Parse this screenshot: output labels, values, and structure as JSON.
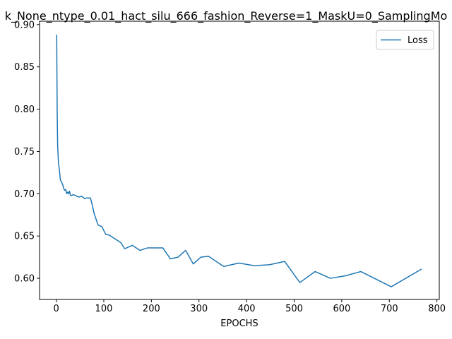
{
  "chart_data": {
    "type": "line",
    "title": "k_None_ntype_0.01_hact_silu_666_fashion_Reverse=1_MaskU=0_SamplingMo",
    "xlabel": "EPOCHS",
    "ylabel": "",
    "xlim": [
      -35,
      805
    ],
    "ylim": [
      0.575,
      0.904
    ],
    "xticks": [
      0,
      100,
      200,
      300,
      400,
      500,
      600,
      700,
      800
    ],
    "yticks": [
      0.6,
      0.65,
      0.7,
      0.75,
      0.8,
      0.85,
      0.9
    ],
    "xtick_labels": [
      "0",
      "100",
      "200",
      "300",
      "400",
      "500",
      "600",
      "700",
      "800"
    ],
    "ytick_labels": [
      "0.60",
      "0.65",
      "0.70",
      "0.75",
      "0.80",
      "0.85",
      "0.90"
    ],
    "grid": false,
    "legend": "upper right",
    "series": [
      {
        "name": "Loss",
        "color": "#1f77b4",
        "x": [
          1,
          2,
          3,
          4,
          5,
          6,
          7,
          8,
          9,
          10,
          12,
          14,
          16,
          18,
          20,
          22,
          24,
          26,
          28,
          30,
          33,
          36,
          40,
          44,
          48,
          52,
          56,
          60,
          64,
          68,
          72,
          76,
          80,
          88,
          96,
          104,
          112,
          120,
          128,
          136,
          144,
          160,
          176,
          192,
          208,
          224,
          240,
          256,
          272,
          288,
          304,
          320,
          352,
          384,
          416,
          448,
          480,
          512,
          544,
          576,
          608,
          640,
          704,
          768
        ],
        "y": [
          0.888,
          0.8,
          0.757,
          0.745,
          0.735,
          0.731,
          0.727,
          0.72,
          0.716,
          0.715,
          0.713,
          0.71,
          0.706,
          0.704,
          0.705,
          0.7,
          0.702,
          0.7,
          0.703,
          0.698,
          0.698,
          0.699,
          0.698,
          0.697,
          0.696,
          0.697,
          0.696,
          0.694,
          0.695,
          0.695,
          0.695,
          0.686,
          0.676,
          0.663,
          0.661,
          0.652,
          0.651,
          0.648,
          0.645,
          0.642,
          0.635,
          0.639,
          0.633,
          0.636,
          0.636,
          0.636,
          0.623,
          0.625,
          0.633,
          0.617,
          0.625,
          0.626,
          0.614,
          0.618,
          0.615,
          0.616,
          0.62,
          0.595,
          0.608,
          0.6,
          0.603,
          0.608,
          0.59,
          0.611
        ]
      }
    ]
  }
}
